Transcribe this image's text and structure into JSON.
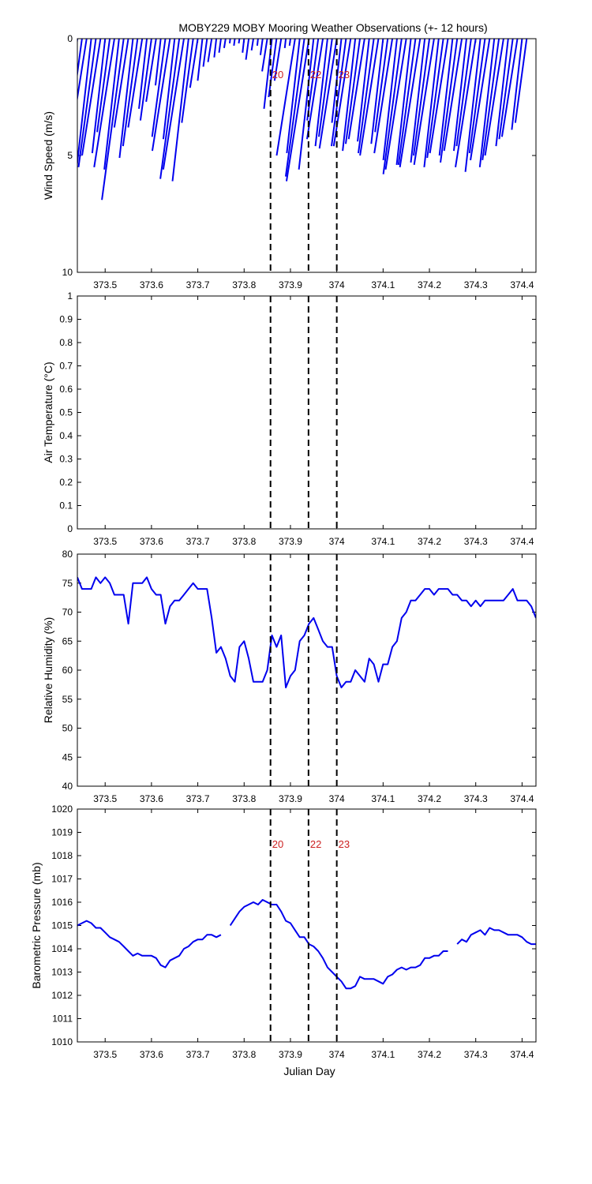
{
  "title": "MOBY229 MOBY Mooring Weather Observations (+- 12 hours)",
  "colors": {
    "data": "#0000ee",
    "marker_text": "#cc2222",
    "axes": "#000000",
    "event_line": "#000000"
  },
  "xaxis": {
    "label": "Julian Day",
    "range": [
      373.44,
      374.43
    ],
    "ticks": [
      373.5,
      373.6,
      373.7,
      373.8,
      373.9,
      374.0,
      374.1,
      374.2,
      374.3,
      374.4
    ],
    "tick_labels": [
      "373.5",
      "373.6",
      "373.7",
      "373.8",
      "373.9",
      "374",
      "374.1",
      "374.2",
      "374.3",
      "374.4"
    ]
  },
  "events": [
    {
      "x": 373.857,
      "label": "20"
    },
    {
      "x": 373.939,
      "label": "22"
    },
    {
      "x": 374.0,
      "label": "23"
    }
  ],
  "chart_data": [
    {
      "type": "line",
      "id": "wind",
      "ylabel": "Wind Speed (m/s)",
      "ylim": [
        0,
        10
      ],
      "y_inverted": true,
      "yticks": [
        0,
        5,
        10
      ],
      "show_event_labels": true,
      "stick_plot": true,
      "series": [
        {
          "x": [
            373.44,
            373.45,
            373.46,
            373.47,
            373.48,
            373.49,
            373.5,
            373.51,
            373.52,
            373.53,
            373.54,
            373.55,
            373.56,
            373.57,
            373.58,
            373.59,
            373.6,
            373.61,
            373.62,
            373.63,
            373.64,
            373.65,
            373.66,
            373.67,
            373.68,
            373.69,
            373.7,
            373.71,
            373.72,
            373.73,
            373.74,
            373.75,
            373.76,
            373.77,
            373.78,
            373.79,
            373.8,
            373.81,
            373.82,
            373.83,
            373.84,
            373.85,
            373.86,
            373.87,
            373.88,
            373.89,
            373.9,
            373.91,
            373.92,
            373.93,
            373.94,
            373.95,
            373.96,
            373.97,
            373.98,
            373.99,
            374.0,
            374.01,
            374.02,
            374.03,
            374.04,
            374.05,
            374.06,
            374.07,
            374.08,
            374.09,
            374.1,
            374.11,
            374.12,
            374.13,
            374.14,
            374.15,
            374.16,
            374.17,
            374.18,
            374.19,
            374.2,
            374.21,
            374.22,
            374.23,
            374.24,
            374.25,
            374.26,
            374.27,
            374.28,
            374.29,
            374.3,
            374.31,
            374.32,
            374.33,
            374.34,
            374.35,
            374.36,
            374.37,
            374.38,
            374.39,
            374.4,
            374.41,
            374.42
          ],
          "y": [
            4.0,
            6.0,
            5.6,
            5.8,
            5.5,
            5.0,
            4.9,
            4.0,
            5.5,
            5.6,
            6.9,
            3.8,
            5.1,
            4.6,
            3.8,
            3.0,
            3.5,
            2.7,
            2.0,
            4.2,
            4.8,
            4.3,
            6.0,
            5.6,
            6.1,
            3.6,
            2.1,
            1.8,
            1.2,
            1.0,
            0.8,
            0.6,
            0.4,
            0.2,
            0.3,
            0.2,
            0.6,
            0.9,
            0.5,
            0.3,
            0.7,
            1.4,
            3.0,
            2.5,
            1.8,
            0.4,
            0.3,
            5.0,
            4.9,
            5.9,
            6.1,
            5.6,
            3.5,
            4.3,
            4.6,
            4.2,
            4.7,
            3.6,
            4.6,
            4.6,
            4.8,
            4.5,
            4.3,
            4.4,
            4.9,
            5.0,
            4.5,
            4.0,
            4.9,
            5.2,
            5.8,
            5.6,
            5.4,
            5.4,
            5.5,
            5.3,
            5.0,
            5.4,
            5.5,
            5.1,
            4.9,
            5.0,
            5.3,
            4.8,
            4.8,
            4.6,
            5.5,
            5.7,
            4.9,
            5.2,
            5.5,
            5.2,
            5.0,
            4.6,
            4.3,
            4.2,
            3.9,
            3.6,
            0.0
          ]
        }
      ]
    },
    {
      "type": "line",
      "id": "airtemp",
      "ylabel": "Air Temperature (°C)",
      "ylim": [
        0,
        1
      ],
      "yticks": [
        0,
        0.1,
        0.2,
        0.3,
        0.4,
        0.5,
        0.6,
        0.7,
        0.8,
        0.9,
        1
      ],
      "show_event_labels": false,
      "series": []
    },
    {
      "type": "line",
      "id": "humidity",
      "ylabel": "Relative Humidity (%)",
      "ylim": [
        40,
        80
      ],
      "yticks": [
        40,
        45,
        50,
        55,
        60,
        65,
        70,
        75,
        80
      ],
      "show_event_labels": false,
      "series": [
        {
          "x": [
            373.44,
            373.45,
            373.47,
            373.48,
            373.49,
            373.5,
            373.51,
            373.52,
            373.53,
            373.54,
            373.55,
            373.56,
            373.57,
            373.58,
            373.59,
            373.6,
            373.61,
            373.62,
            373.63,
            373.64,
            373.65,
            373.66,
            373.67,
            373.68,
            373.69,
            373.7,
            373.71,
            373.72,
            373.73,
            373.74,
            373.75,
            373.76,
            373.77,
            373.78,
            373.79,
            373.8,
            373.81,
            373.82,
            373.83,
            373.84,
            373.85,
            373.86,
            373.87,
            373.88,
            373.89,
            373.9,
            373.91,
            373.92,
            373.93,
            373.94,
            373.95,
            373.96,
            373.97,
            373.98,
            373.99,
            374.0,
            374.01,
            374.02,
            374.03,
            374.04,
            374.05,
            374.06,
            374.07,
            374.08,
            374.09,
            374.1,
            374.11,
            374.12,
            374.13,
            374.14,
            374.15,
            374.16,
            374.17,
            374.18,
            374.19,
            374.2,
            374.21,
            374.22,
            374.23,
            374.24,
            374.25,
            374.26,
            374.27,
            374.28,
            374.29,
            374.3,
            374.31,
            374.32,
            374.33,
            374.34,
            374.35,
            374.36,
            374.37,
            374.38,
            374.39,
            374.4,
            374.41,
            374.42,
            374.43
          ],
          "y": [
            76,
            74,
            74,
            76,
            75,
            76,
            75,
            73,
            73,
            73,
            68,
            75,
            75,
            75,
            76,
            74,
            73,
            73,
            68,
            71,
            72,
            72,
            73,
            74,
            75,
            74,
            74,
            74,
            69,
            63,
            64,
            62,
            59,
            58,
            64,
            65,
            62,
            58,
            58,
            58,
            60,
            66,
            64,
            66,
            57,
            59,
            60,
            65,
            66,
            68,
            69,
            67,
            65,
            64,
            64,
            59,
            57,
            58,
            58,
            60,
            59,
            58,
            62,
            61,
            58,
            61,
            61,
            64,
            65,
            69,
            70,
            72,
            72,
            73,
            74,
            74,
            73,
            74,
            74,
            74,
            73,
            73,
            72,
            72,
            71,
            72,
            71,
            72,
            72,
            72,
            72,
            72,
            73,
            74,
            72,
            72,
            72,
            71,
            69
          ]
        }
      ]
    },
    {
      "type": "line",
      "id": "pressure",
      "ylabel": "Barometric Pressure (mb)",
      "xlabel": "Julian Day",
      "ylim": [
        1010,
        1020
      ],
      "yticks": [
        1010,
        1011,
        1012,
        1013,
        1014,
        1015,
        1016,
        1017,
        1018,
        1019,
        1020
      ],
      "show_event_labels": true,
      "series": [
        {
          "x": [
            373.44,
            373.45,
            373.46,
            373.47,
            373.48,
            373.49,
            373.5,
            373.51,
            373.52,
            373.53,
            373.54,
            373.55,
            373.56,
            373.57,
            373.58,
            373.59,
            373.6,
            373.61,
            373.62,
            373.63,
            373.64,
            373.65,
            373.66,
            373.67,
            373.68,
            373.69,
            373.7,
            373.71,
            373.72,
            373.73,
            373.74,
            373.75
          ],
          "y": [
            1015.0,
            1015.1,
            1015.2,
            1015.1,
            1014.9,
            1014.9,
            1014.7,
            1014.5,
            1014.4,
            1014.3,
            1014.1,
            1013.9,
            1013.7,
            1013.8,
            1013.7,
            1013.7,
            1013.7,
            1013.6,
            1013.3,
            1013.2,
            1013.5,
            1013.6,
            1013.7,
            1014.0,
            1014.1,
            1014.3,
            1014.4,
            1014.4,
            1014.6,
            1014.6,
            1014.5,
            1014.6
          ]
        },
        {
          "x": [
            373.77,
            373.78,
            373.79,
            373.8,
            373.81,
            373.82,
            373.83,
            373.84,
            373.85,
            373.86,
            373.87,
            373.88,
            373.89,
            373.9,
            373.91,
            373.92,
            373.93,
            373.94,
            373.95,
            373.96,
            373.97,
            373.98,
            373.99,
            374.0,
            374.01,
            374.02,
            374.03,
            374.04,
            374.05,
            374.06,
            374.07,
            374.08,
            374.09,
            374.1,
            374.11,
            374.12,
            374.13,
            374.14,
            374.15,
            374.16,
            374.17,
            374.18,
            374.19,
            374.2,
            374.21,
            374.22,
            374.23,
            374.24
          ],
          "y": [
            1015.0,
            1015.3,
            1015.6,
            1015.8,
            1015.9,
            1016.0,
            1015.9,
            1016.1,
            1016.0,
            1015.9,
            1015.9,
            1015.6,
            1015.2,
            1015.1,
            1014.8,
            1014.5,
            1014.5,
            1014.2,
            1014.1,
            1013.9,
            1013.6,
            1013.2,
            1013.0,
            1012.8,
            1012.6,
            1012.3,
            1012.3,
            1012.4,
            1012.8,
            1012.7,
            1012.7,
            1012.7,
            1012.6,
            1012.5,
            1012.8,
            1012.9,
            1013.1,
            1013.2,
            1013.1,
            1013.2,
            1013.2,
            1013.3,
            1013.6,
            1013.6,
            1013.7,
            1013.7,
            1013.9,
            1013.9
          ]
        },
        {
          "x": [
            374.26,
            374.27,
            374.28,
            374.29,
            374.3,
            374.31,
            374.32,
            374.33,
            374.34,
            374.35,
            374.36,
            374.37,
            374.38,
            374.39,
            374.4,
            374.41,
            374.42,
            374.43
          ],
          "y": [
            1014.2,
            1014.4,
            1014.3,
            1014.6,
            1014.7,
            1014.8,
            1014.6,
            1014.9,
            1014.8,
            1014.8,
            1014.7,
            1014.6,
            1014.6,
            1014.6,
            1014.5,
            1014.3,
            1014.2,
            1014.2
          ]
        }
      ]
    }
  ]
}
